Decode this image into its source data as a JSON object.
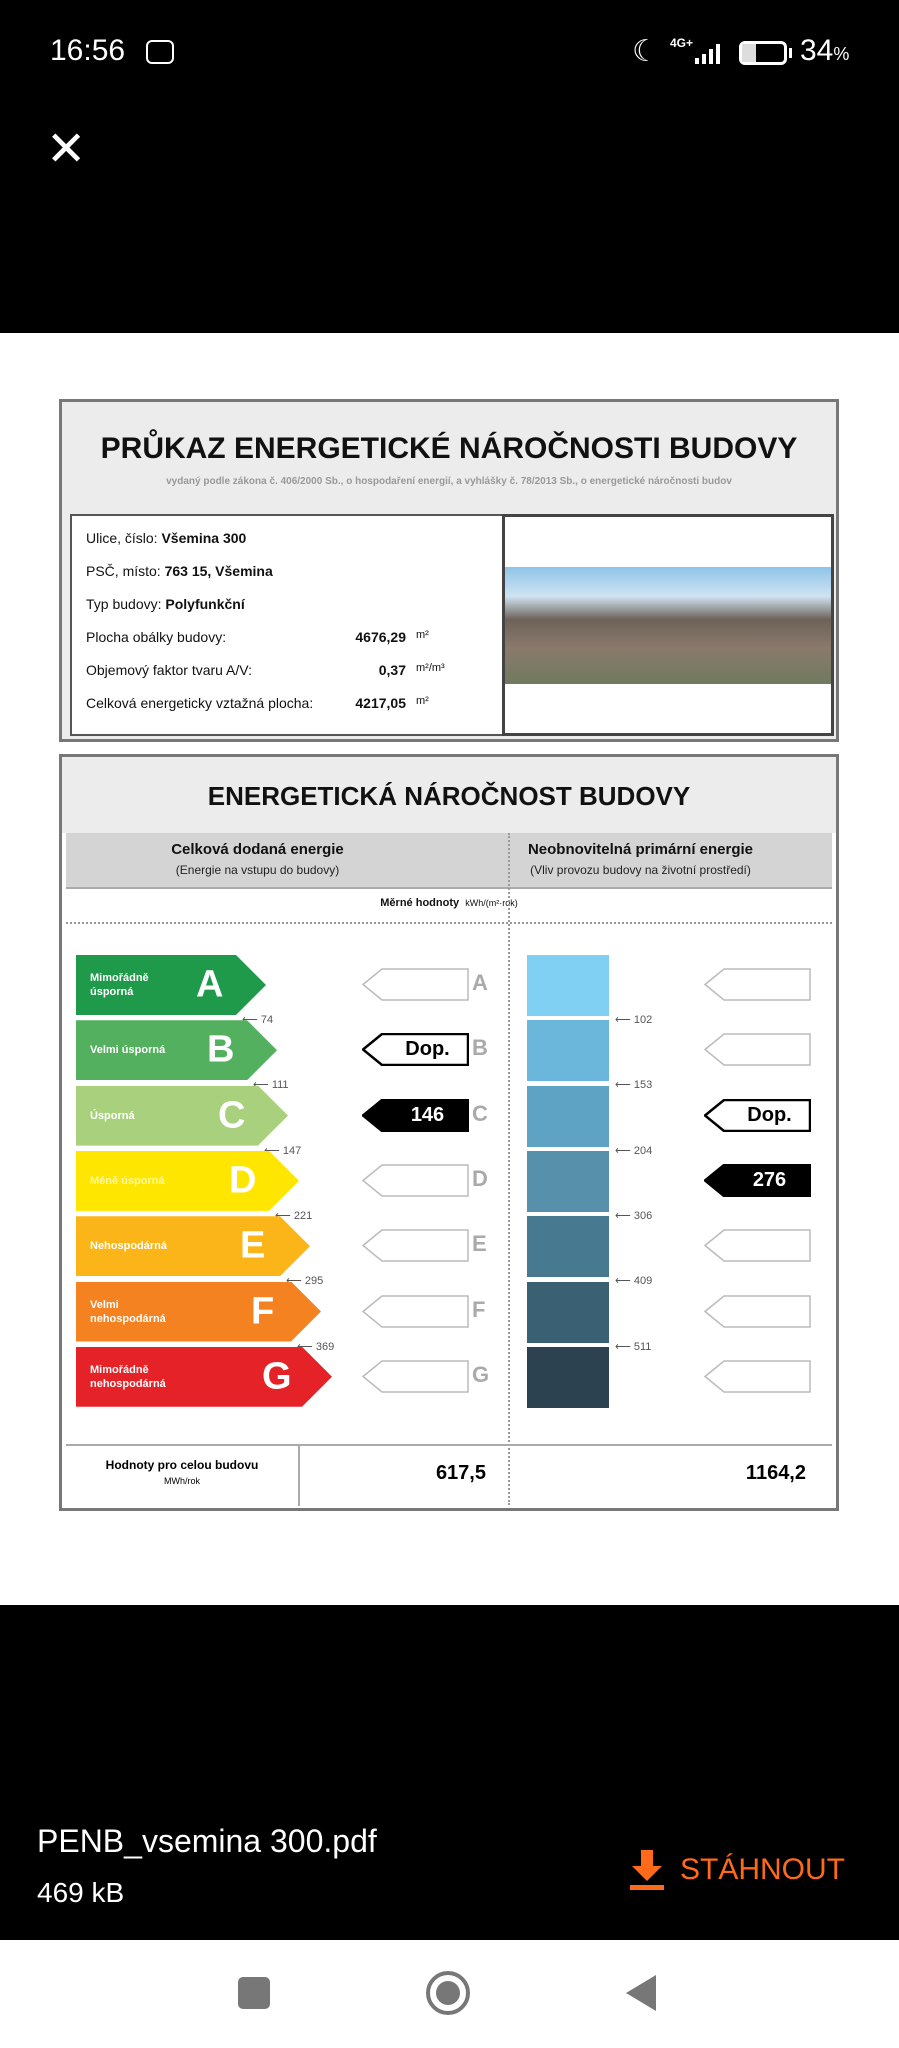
{
  "status": {
    "time": "16:56",
    "network": "4G+",
    "battery": "34",
    "battery_unit": "%",
    "battery_level": 0.34
  },
  "viewer": {
    "close_icon": "close-icon",
    "file_name": "PENB_vsemina 300.pdf",
    "file_size": "469 kB",
    "download_label": "STÁHNOUT",
    "accent": "#ff6a1a"
  },
  "doc": {
    "title": "PRŮKAZ ENERGETICKÉ NÁROČNOSTI BUDOVY",
    "subtitle": "vydaný podle zákona č. 406/2000 Sb., o hospodaření energií, a vyhlášky č. 78/2013 Sb., o energetické náročnosti budov",
    "info": [
      {
        "label": "Ulice, číslo:",
        "value": "Všemina 300",
        "unit": ""
      },
      {
        "label": "PSČ, místo:",
        "value": "763 15, Všemina",
        "unit": ""
      },
      {
        "label": "Typ budovy:",
        "value": "Polyfunkční",
        "unit": ""
      },
      {
        "label": "Plocha obálky budovy:",
        "value": "4676,29",
        "unit": "m²"
      },
      {
        "label": "Objemový faktor tvaru A/V:",
        "value": "0,37",
        "unit": "m²/m³"
      },
      {
        "label": "Celková energeticky vztažná plocha:",
        "value": "4217,05",
        "unit": "m²"
      }
    ],
    "section_title": "ENERGETICKÁ NÁROČNOST BUDOVY",
    "left_header": "Celková dodaná energie",
    "left_sub": "(Energie na vstupu do budovy)",
    "right_header": "Neobnovitelná primární energie",
    "right_sub": "(Vliv provozu budovy na životní prostředí)",
    "specific_label": "Měrné hodnoty",
    "specific_unit": "kWh/(m²·rok)",
    "classes": [
      {
        "letter": "A",
        "label": "Mimořádně úsporná",
        "color": "#1f9a4a",
        "left_thr": "74",
        "right_thr": "102",
        "left_ind": "",
        "right_ind": ""
      },
      {
        "letter": "B",
        "label": "Velmi úsporná",
        "color": "#52b05e",
        "left_thr": "111",
        "right_thr": "153",
        "left_ind": "Dop.",
        "right_ind": ""
      },
      {
        "letter": "C",
        "label": "Úsporná",
        "color": "#a9d07c",
        "left_thr": "147",
        "right_thr": "204",
        "left_ind": "146",
        "right_ind": "Dop."
      },
      {
        "letter": "D",
        "label": "Méně úsporná",
        "color": "#ffe600",
        "left_thr": "221",
        "right_thr": "306",
        "left_ind": "",
        "right_ind": "276"
      },
      {
        "letter": "E",
        "label": "Nehospodárná",
        "color": "#fbb518",
        "left_thr": "295",
        "right_thr": "409",
        "left_ind": "",
        "right_ind": ""
      },
      {
        "letter": "F",
        "label": "Velmi nehospodárná",
        "color": "#f58220",
        "left_thr": "369",
        "right_thr": "511",
        "left_ind": "",
        "right_ind": ""
      },
      {
        "letter": "G",
        "label": "Mimořádně nehospodárná",
        "color": "#e52228",
        "left_thr": "",
        "right_thr": "",
        "left_ind": "",
        "right_ind": ""
      }
    ],
    "blue_scale": [
      "#7fd0f2",
      "#6bb7dc",
      "#5fa3c4",
      "#5690aa",
      "#477a90",
      "#3a6073",
      "#2c4250"
    ],
    "total_label": "Hodnoty pro celou budovu",
    "total_unit": "MWh/rok",
    "total_left": "617,5",
    "total_right": "1164,2"
  }
}
